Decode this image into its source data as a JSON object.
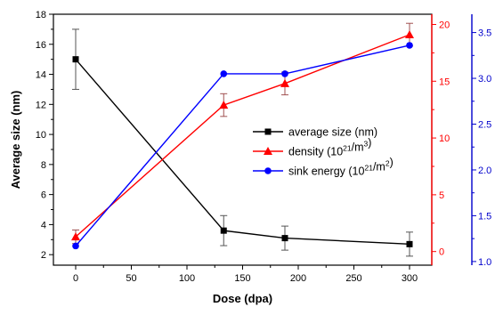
{
  "chart_data": {
    "type": "line",
    "x": [
      0,
      133,
      188,
      300
    ],
    "xlabel": "Dose (dpa)",
    "xlim": [
      -20,
      320
    ],
    "xticks": [
      "0",
      "50",
      "100",
      "150",
      "200",
      "250",
      "300"
    ],
    "axes": {
      "left": {
        "label": "Average size (nm)",
        "ylim": [
          1.3,
          18
        ],
        "ticks": [
          "2",
          "4",
          "6",
          "8",
          "10",
          "12",
          "14",
          "16",
          "18"
        ],
        "color": "#000000"
      },
      "right": {
        "label": "",
        "ylim": [
          -1.2,
          20.9
        ],
        "ticks": [
          "0",
          "5",
          "10",
          "15",
          "20"
        ],
        "color": "#ff0000"
      },
      "right2": {
        "label": "",
        "ylim": [
          0.96,
          3.7
        ],
        "ticks": [
          "1.0",
          "1.5",
          "2.0",
          "2.5",
          "3.0",
          "3.5"
        ],
        "color": "#0000cc"
      }
    },
    "series": [
      {
        "name": "average size (nm)",
        "axis": "left",
        "color": "#000000",
        "marker": "square",
        "values": [
          15.0,
          3.6,
          3.1,
          2.7
        ],
        "errors": [
          2.0,
          1.0,
          0.8,
          0.8
        ]
      },
      {
        "name": "density (10²¹/m³)",
        "axis": "right",
        "color": "#ff0000",
        "marker": "triangle",
        "values": [
          1.3,
          12.9,
          14.8,
          19.1
        ],
        "errors": [
          0.6,
          1.0,
          1.0,
          1.0
        ]
      },
      {
        "name": "sink energy (10²¹/m²)",
        "axis": "right2",
        "color": "#0000ff",
        "marker": "circle",
        "values": [
          1.17,
          3.05,
          3.05,
          3.36
        ],
        "errors": [
          0,
          0,
          0,
          0
        ]
      }
    ],
    "legend": {
      "position": "middle-right",
      "entries": [
        {
          "main": "average size (nm)",
          "sup": "",
          "tail": ""
        },
        {
          "main": "density (10",
          "sup": "21",
          "tail": "/m",
          "sup2": "3",
          "end": ")"
        },
        {
          "main": "sink energy (10",
          "sup": "21",
          "tail": "/m",
          "sup2": "2",
          "end": ")"
        }
      ]
    },
    "grid": false
  }
}
